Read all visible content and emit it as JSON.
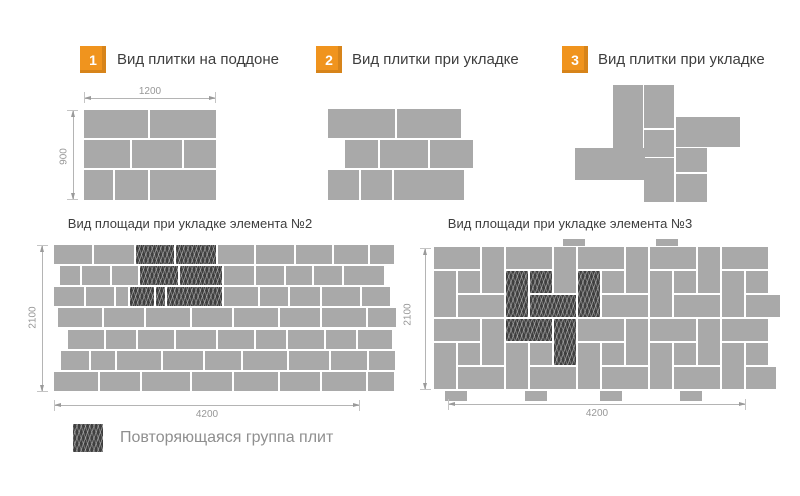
{
  "steps": [
    {
      "num": "1",
      "title": "Вид плитки на поддоне"
    },
    {
      "num": "2",
      "title": "Вид плитки при укладке"
    },
    {
      "num": "3",
      "title": "Вид плитки при укладке"
    }
  ],
  "pallet": {
    "dim_width": "1200",
    "dim_height": "900",
    "tiles": [
      [
        0,
        0,
        64,
        28
      ],
      [
        66,
        0,
        66,
        28
      ],
      [
        0,
        30,
        46,
        28
      ],
      [
        48,
        30,
        50,
        28
      ],
      [
        100,
        30,
        32,
        28
      ],
      [
        0,
        60,
        29,
        30
      ],
      [
        31,
        60,
        33,
        30
      ],
      [
        66,
        60,
        66,
        30
      ]
    ]
  },
  "laying2": {
    "tiles": [
      [
        0,
        9,
        67,
        29
      ],
      [
        69,
        9,
        64,
        29
      ],
      [
        17,
        40,
        33,
        28
      ],
      [
        52,
        40,
        48,
        28
      ],
      [
        102,
        40,
        43,
        28
      ],
      [
        0,
        70,
        31,
        30
      ],
      [
        33,
        70,
        31,
        30
      ],
      [
        66,
        70,
        70,
        30
      ]
    ]
  },
  "laying3": {
    "tiles": [
      [
        38,
        0,
        30,
        63
      ],
      [
        69,
        0,
        30,
        43
      ],
      [
        69,
        45,
        30,
        27
      ],
      [
        101,
        32,
        64,
        30
      ],
      [
        0,
        63,
        70,
        32
      ],
      [
        101,
        63,
        31,
        24
      ],
      [
        69,
        73,
        30,
        44
      ],
      [
        101,
        89,
        31,
        28
      ]
    ]
  },
  "field2": {
    "title": "Вид площади при укладке элемента №2",
    "dim_width": "4200",
    "dim_height": "2100",
    "tiles": [
      [
        0,
        0,
        38,
        19
      ],
      [
        40,
        0,
        40,
        19
      ],
      [
        82,
        0,
        38,
        19,
        1
      ],
      [
        122,
        0,
        40,
        19,
        1
      ],
      [
        164,
        0,
        36,
        19
      ],
      [
        202,
        0,
        38,
        19
      ],
      [
        242,
        0,
        36,
        19
      ],
      [
        280,
        0,
        34,
        19
      ],
      [
        316,
        0,
        24,
        19
      ],
      [
        6,
        21,
        20,
        19
      ],
      [
        28,
        21,
        28,
        19
      ],
      [
        58,
        21,
        26,
        19
      ],
      [
        86,
        21,
        38,
        19,
        1
      ],
      [
        126,
        21,
        42,
        19,
        1
      ],
      [
        170,
        21,
        30,
        19
      ],
      [
        202,
        21,
        28,
        19
      ],
      [
        232,
        21,
        26,
        19
      ],
      [
        260,
        21,
        28,
        19
      ],
      [
        290,
        21,
        40,
        19
      ],
      [
        0,
        42,
        30,
        19
      ],
      [
        32,
        42,
        28,
        19
      ],
      [
        62,
        42,
        12,
        19
      ],
      [
        76,
        42,
        24,
        19,
        1
      ],
      [
        102,
        42,
        9,
        19,
        1
      ],
      [
        113,
        42,
        55,
        19,
        1
      ],
      [
        170,
        42,
        34,
        19
      ],
      [
        206,
        42,
        28,
        19
      ],
      [
        236,
        42,
        30,
        19
      ],
      [
        268,
        42,
        38,
        19
      ],
      [
        308,
        42,
        28,
        19
      ],
      [
        4,
        63,
        44,
        19
      ],
      [
        50,
        63,
        40,
        19
      ],
      [
        92,
        63,
        44,
        19
      ],
      [
        138,
        63,
        40,
        19
      ],
      [
        180,
        63,
        44,
        19
      ],
      [
        226,
        63,
        40,
        19
      ],
      [
        268,
        63,
        44,
        19
      ],
      [
        314,
        63,
        28,
        19
      ],
      [
        14,
        85,
        36,
        19
      ],
      [
        52,
        85,
        30,
        19
      ],
      [
        84,
        85,
        36,
        19
      ],
      [
        122,
        85,
        40,
        19
      ],
      [
        164,
        85,
        36,
        19
      ],
      [
        202,
        85,
        30,
        19
      ],
      [
        234,
        85,
        36,
        19
      ],
      [
        272,
        85,
        30,
        19
      ],
      [
        304,
        85,
        34,
        19
      ],
      [
        7,
        106,
        28,
        19
      ],
      [
        37,
        106,
        24,
        19
      ],
      [
        63,
        106,
        44,
        19
      ],
      [
        109,
        106,
        40,
        19
      ],
      [
        151,
        106,
        36,
        19
      ],
      [
        189,
        106,
        44,
        19
      ],
      [
        235,
        106,
        40,
        19
      ],
      [
        277,
        106,
        36,
        19
      ],
      [
        315,
        106,
        26,
        19
      ],
      [
        0,
        127,
        44,
        19
      ],
      [
        46,
        127,
        40,
        19
      ],
      [
        88,
        127,
        48,
        19
      ],
      [
        138,
        127,
        40,
        19
      ],
      [
        180,
        127,
        44,
        19
      ],
      [
        226,
        127,
        40,
        19
      ],
      [
        268,
        127,
        44,
        19
      ],
      [
        314,
        127,
        26,
        19
      ]
    ]
  },
  "field3": {
    "title": "Вид площади при укладке элемента №3",
    "dim_width": "4200",
    "dim_height": "2100",
    "tiles": [
      [
        -6,
        2,
        46,
        22
      ],
      [
        42,
        2,
        22,
        46
      ],
      [
        18,
        26,
        22,
        22
      ],
      [
        -6,
        26,
        22,
        46
      ],
      [
        18,
        50,
        46,
        22
      ],
      [
        66,
        2,
        46,
        22
      ],
      [
        114,
        2,
        22,
        46
      ],
      [
        90,
        26,
        22,
        22,
        1
      ],
      [
        66,
        26,
        22,
        46,
        1
      ],
      [
        90,
        50,
        46,
        22,
        1
      ],
      [
        138,
        2,
        46,
        22
      ],
      [
        186,
        2,
        22,
        46
      ],
      [
        162,
        26,
        22,
        22
      ],
      [
        138,
        26,
        22,
        46,
        1
      ],
      [
        162,
        50,
        46,
        22
      ],
      [
        210,
        2,
        46,
        22
      ],
      [
        258,
        2,
        22,
        46
      ],
      [
        234,
        26,
        22,
        22
      ],
      [
        210,
        26,
        22,
        46
      ],
      [
        234,
        50,
        46,
        22
      ],
      [
        282,
        2,
        46,
        22
      ],
      [
        306,
        26,
        22,
        22
      ],
      [
        282,
        26,
        22,
        46
      ],
      [
        306,
        50,
        34,
        22
      ],
      [
        -6,
        74,
        46,
        22
      ],
      [
        42,
        74,
        22,
        46
      ],
      [
        18,
        98,
        22,
        22
      ],
      [
        -6,
        98,
        22,
        46
      ],
      [
        18,
        122,
        46,
        22
      ],
      [
        66,
        74,
        46,
        22,
        1
      ],
      [
        114,
        74,
        22,
        46,
        1
      ],
      [
        90,
        98,
        22,
        22
      ],
      [
        66,
        98,
        22,
        46
      ],
      [
        90,
        122,
        46,
        22
      ],
      [
        138,
        74,
        46,
        22
      ],
      [
        186,
        74,
        22,
        46
      ],
      [
        162,
        98,
        22,
        22
      ],
      [
        138,
        98,
        22,
        46
      ],
      [
        162,
        122,
        46,
        22
      ],
      [
        210,
        74,
        46,
        22
      ],
      [
        258,
        74,
        22,
        46
      ],
      [
        234,
        98,
        22,
        22
      ],
      [
        210,
        98,
        22,
        46
      ],
      [
        234,
        122,
        46,
        22
      ],
      [
        282,
        74,
        46,
        22
      ],
      [
        306,
        98,
        22,
        22
      ],
      [
        282,
        98,
        22,
        46
      ],
      [
        306,
        122,
        30,
        22
      ],
      [
        5,
        146,
        22,
        10
      ],
      [
        85,
        146,
        22,
        10
      ],
      [
        160,
        146,
        22,
        10
      ],
      [
        240,
        146,
        22,
        10
      ],
      [
        123,
        -6,
        22,
        7
      ],
      [
        216,
        -6,
        22,
        7
      ]
    ]
  },
  "legend": {
    "label": "Повторяющаяся группа плит"
  },
  "colors": {
    "tile": "#a9a9a9",
    "tile_dark": "#3f3f3f",
    "badge": "#f0941e",
    "title_text": "#3e3e3e",
    "muted_text": "#8f8f8f",
    "dim_line": "#b4b4b4"
  }
}
